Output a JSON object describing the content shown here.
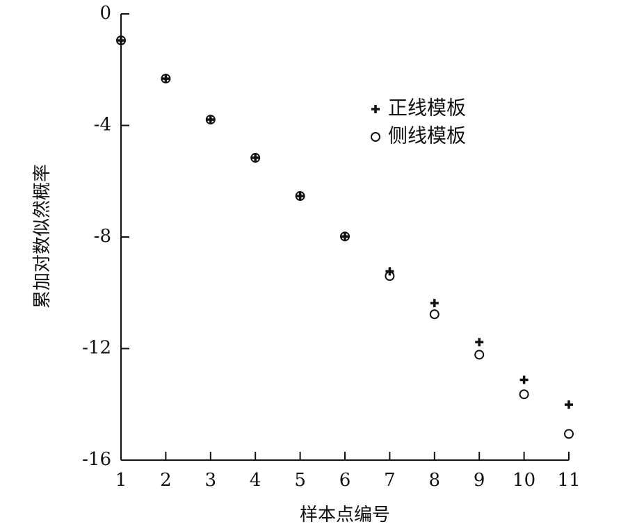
{
  "chart_data": {
    "type": "scatter",
    "x_label": "样本点编号",
    "y_label": "累加对数似然概率",
    "x": [
      1,
      2,
      3,
      4,
      5,
      6,
      7,
      8,
      9,
      10,
      11
    ],
    "series": [
      {
        "name": "正线模板",
        "color": "#111111",
        "marker": "plus",
        "values": [
          -0.95,
          -2.32,
          -3.79,
          -5.16,
          -6.53,
          -7.98,
          -9.23,
          -10.37,
          -11.77,
          -13.12,
          -14.01
        ]
      },
      {
        "name": "侧线模板",
        "color": "#111111",
        "marker": "circle",
        "values": [
          -0.95,
          -2.32,
          -3.79,
          -5.16,
          -6.53,
          -7.98,
          -9.4,
          -10.77,
          -12.22,
          -13.64,
          -15.06
        ]
      }
    ],
    "xlim": [
      1,
      11
    ],
    "xticks": [
      1,
      2,
      3,
      4,
      5,
      6,
      7,
      8,
      9,
      10,
      11
    ],
    "ylim": [
      -16,
      0
    ],
    "yticks": [
      -16,
      -12,
      -8,
      -4,
      0
    ],
    "grid": false,
    "legend": "upper-right"
  }
}
